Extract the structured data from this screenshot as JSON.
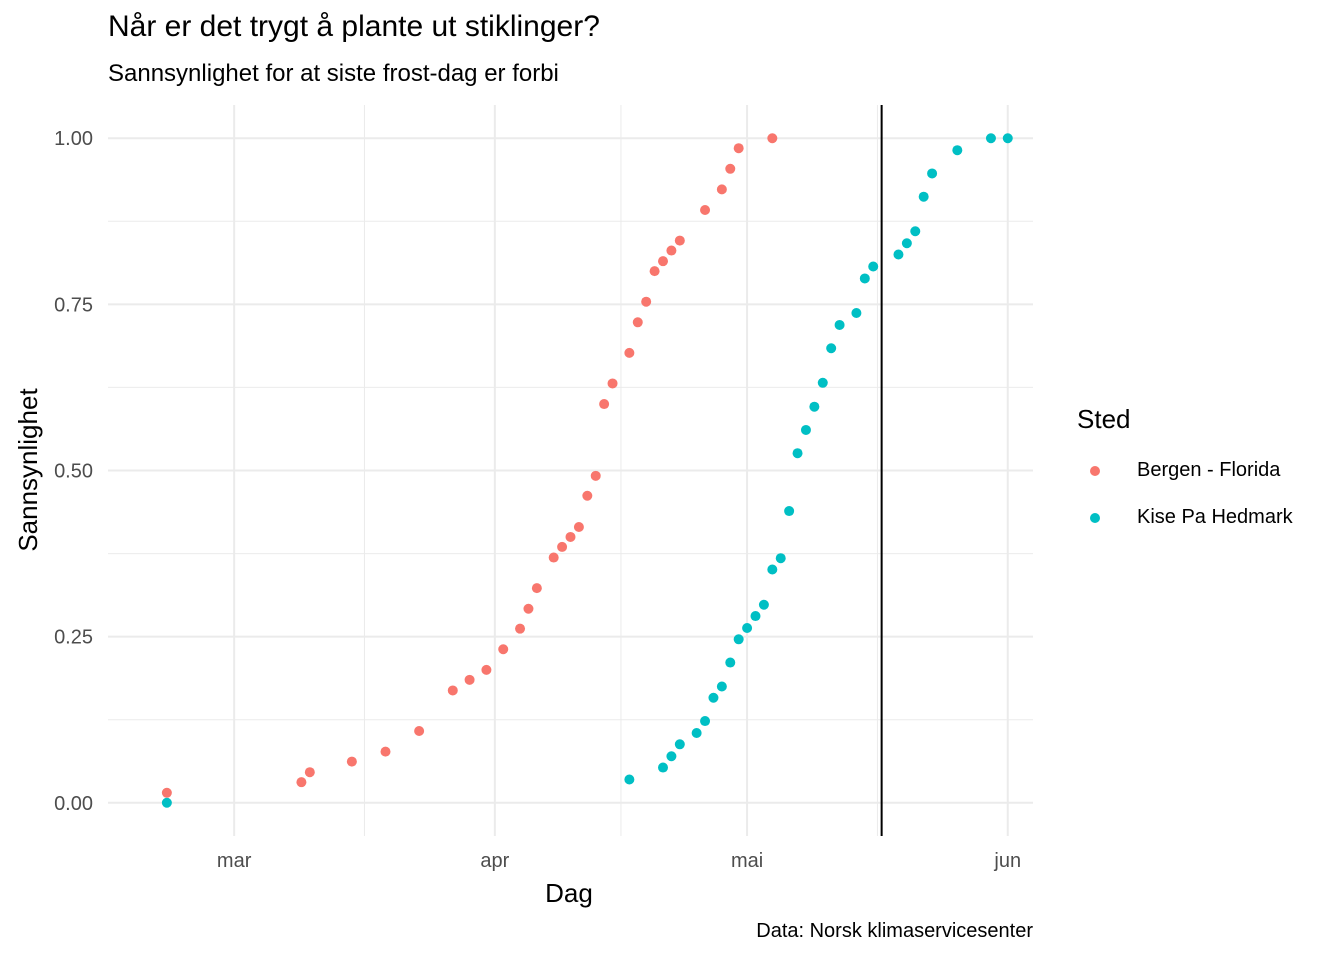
{
  "title": "Når er det trygt å plante ut stiklinger?",
  "subtitle": "Sannsynlighet for at siste frost-dag er forbi",
  "caption": "Data: Norsk klimaservicesenter",
  "legend": {
    "title": "Sted",
    "items": [
      {
        "label": "Bergen - Florida",
        "color": "#F8766D"
      },
      {
        "label": "Kise Pa Hedmark",
        "color": "#00BFC4"
      }
    ]
  },
  "chart_data": {
    "type": "scatter",
    "xlabel": "Dag",
    "ylabel": "Sannsynlighet",
    "x_unit": "date",
    "xlim": [
      "2023-02-14",
      "2023-06-04"
    ],
    "ylim": [
      -0.05,
      1.05
    ],
    "x_ticks": [
      {
        "date": "2023-03-01",
        "label": "mar"
      },
      {
        "date": "2023-04-01",
        "label": "apr"
      },
      {
        "date": "2023-05-01",
        "label": "mai"
      },
      {
        "date": "2023-06-01",
        "label": "jun"
      }
    ],
    "y_ticks": [
      {
        "value": 0.0,
        "label": "0.00"
      },
      {
        "value": 0.25,
        "label": "0.25"
      },
      {
        "value": 0.5,
        "label": "0.50"
      },
      {
        "value": 0.75,
        "label": "0.75"
      },
      {
        "value": 1.0,
        "label": "1.00"
      }
    ],
    "vline_date": "2023-05-17",
    "grid": true,
    "legend_position": "right",
    "series": [
      {
        "name": "Bergen - Florida",
        "color": "#F8766D",
        "points": [
          [
            "2023-02-21",
            0.015
          ],
          [
            "2023-03-09",
            0.031
          ],
          [
            "2023-03-10",
            0.046
          ],
          [
            "2023-03-15",
            0.062
          ],
          [
            "2023-03-19",
            0.077
          ],
          [
            "2023-03-23",
            0.108
          ],
          [
            "2023-03-27",
            0.169
          ],
          [
            "2023-03-29",
            0.185
          ],
          [
            "2023-03-31",
            0.2
          ],
          [
            "2023-04-02",
            0.231
          ],
          [
            "2023-04-04",
            0.262
          ],
          [
            "2023-04-05",
            0.292
          ],
          [
            "2023-04-06",
            0.323
          ],
          [
            "2023-04-08",
            0.369
          ],
          [
            "2023-04-09",
            0.385
          ],
          [
            "2023-04-10",
            0.4
          ],
          [
            "2023-04-11",
            0.415
          ],
          [
            "2023-04-12",
            0.462
          ],
          [
            "2023-04-13",
            0.492
          ],
          [
            "2023-04-14",
            0.6
          ],
          [
            "2023-04-15",
            0.631
          ],
          [
            "2023-04-17",
            0.677
          ],
          [
            "2023-04-18",
            0.723
          ],
          [
            "2023-04-19",
            0.754
          ],
          [
            "2023-04-20",
            0.8
          ],
          [
            "2023-04-21",
            0.815
          ],
          [
            "2023-04-22",
            0.831
          ],
          [
            "2023-04-23",
            0.846
          ],
          [
            "2023-04-26",
            0.892
          ],
          [
            "2023-04-28",
            0.923
          ],
          [
            "2023-04-29",
            0.954
          ],
          [
            "2023-04-30",
            0.985
          ],
          [
            "2023-05-04",
            1.0
          ]
        ]
      },
      {
        "name": "Kise Pa Hedmark",
        "color": "#00BFC4",
        "points": [
          [
            "2023-02-21",
            0.0
          ],
          [
            "2023-04-17",
            0.035
          ],
          [
            "2023-04-21",
            0.053
          ],
          [
            "2023-04-22",
            0.07
          ],
          [
            "2023-04-23",
            0.088
          ],
          [
            "2023-04-25",
            0.105
          ],
          [
            "2023-04-26",
            0.123
          ],
          [
            "2023-04-27",
            0.158
          ],
          [
            "2023-04-28",
            0.175
          ],
          [
            "2023-04-29",
            0.211
          ],
          [
            "2023-04-30",
            0.246
          ],
          [
            "2023-05-01",
            0.263
          ],
          [
            "2023-05-02",
            0.281
          ],
          [
            "2023-05-03",
            0.298
          ],
          [
            "2023-05-04",
            0.351
          ],
          [
            "2023-05-05",
            0.368
          ],
          [
            "2023-05-06",
            0.439
          ],
          [
            "2023-05-07",
            0.526
          ],
          [
            "2023-05-08",
            0.561
          ],
          [
            "2023-05-09",
            0.596
          ],
          [
            "2023-05-10",
            0.632
          ],
          [
            "2023-05-11",
            0.684
          ],
          [
            "2023-05-12",
            0.719
          ],
          [
            "2023-05-14",
            0.737
          ],
          [
            "2023-05-15",
            0.789
          ],
          [
            "2023-05-16",
            0.807
          ],
          [
            "2023-05-19",
            0.825
          ],
          [
            "2023-05-20",
            0.842
          ],
          [
            "2023-05-21",
            0.86
          ],
          [
            "2023-05-22",
            0.912
          ],
          [
            "2023-05-23",
            0.947
          ],
          [
            "2023-05-26",
            0.982
          ],
          [
            "2023-05-30",
            1.0
          ],
          [
            "2023-06-01",
            1.0
          ]
        ]
      }
    ]
  }
}
